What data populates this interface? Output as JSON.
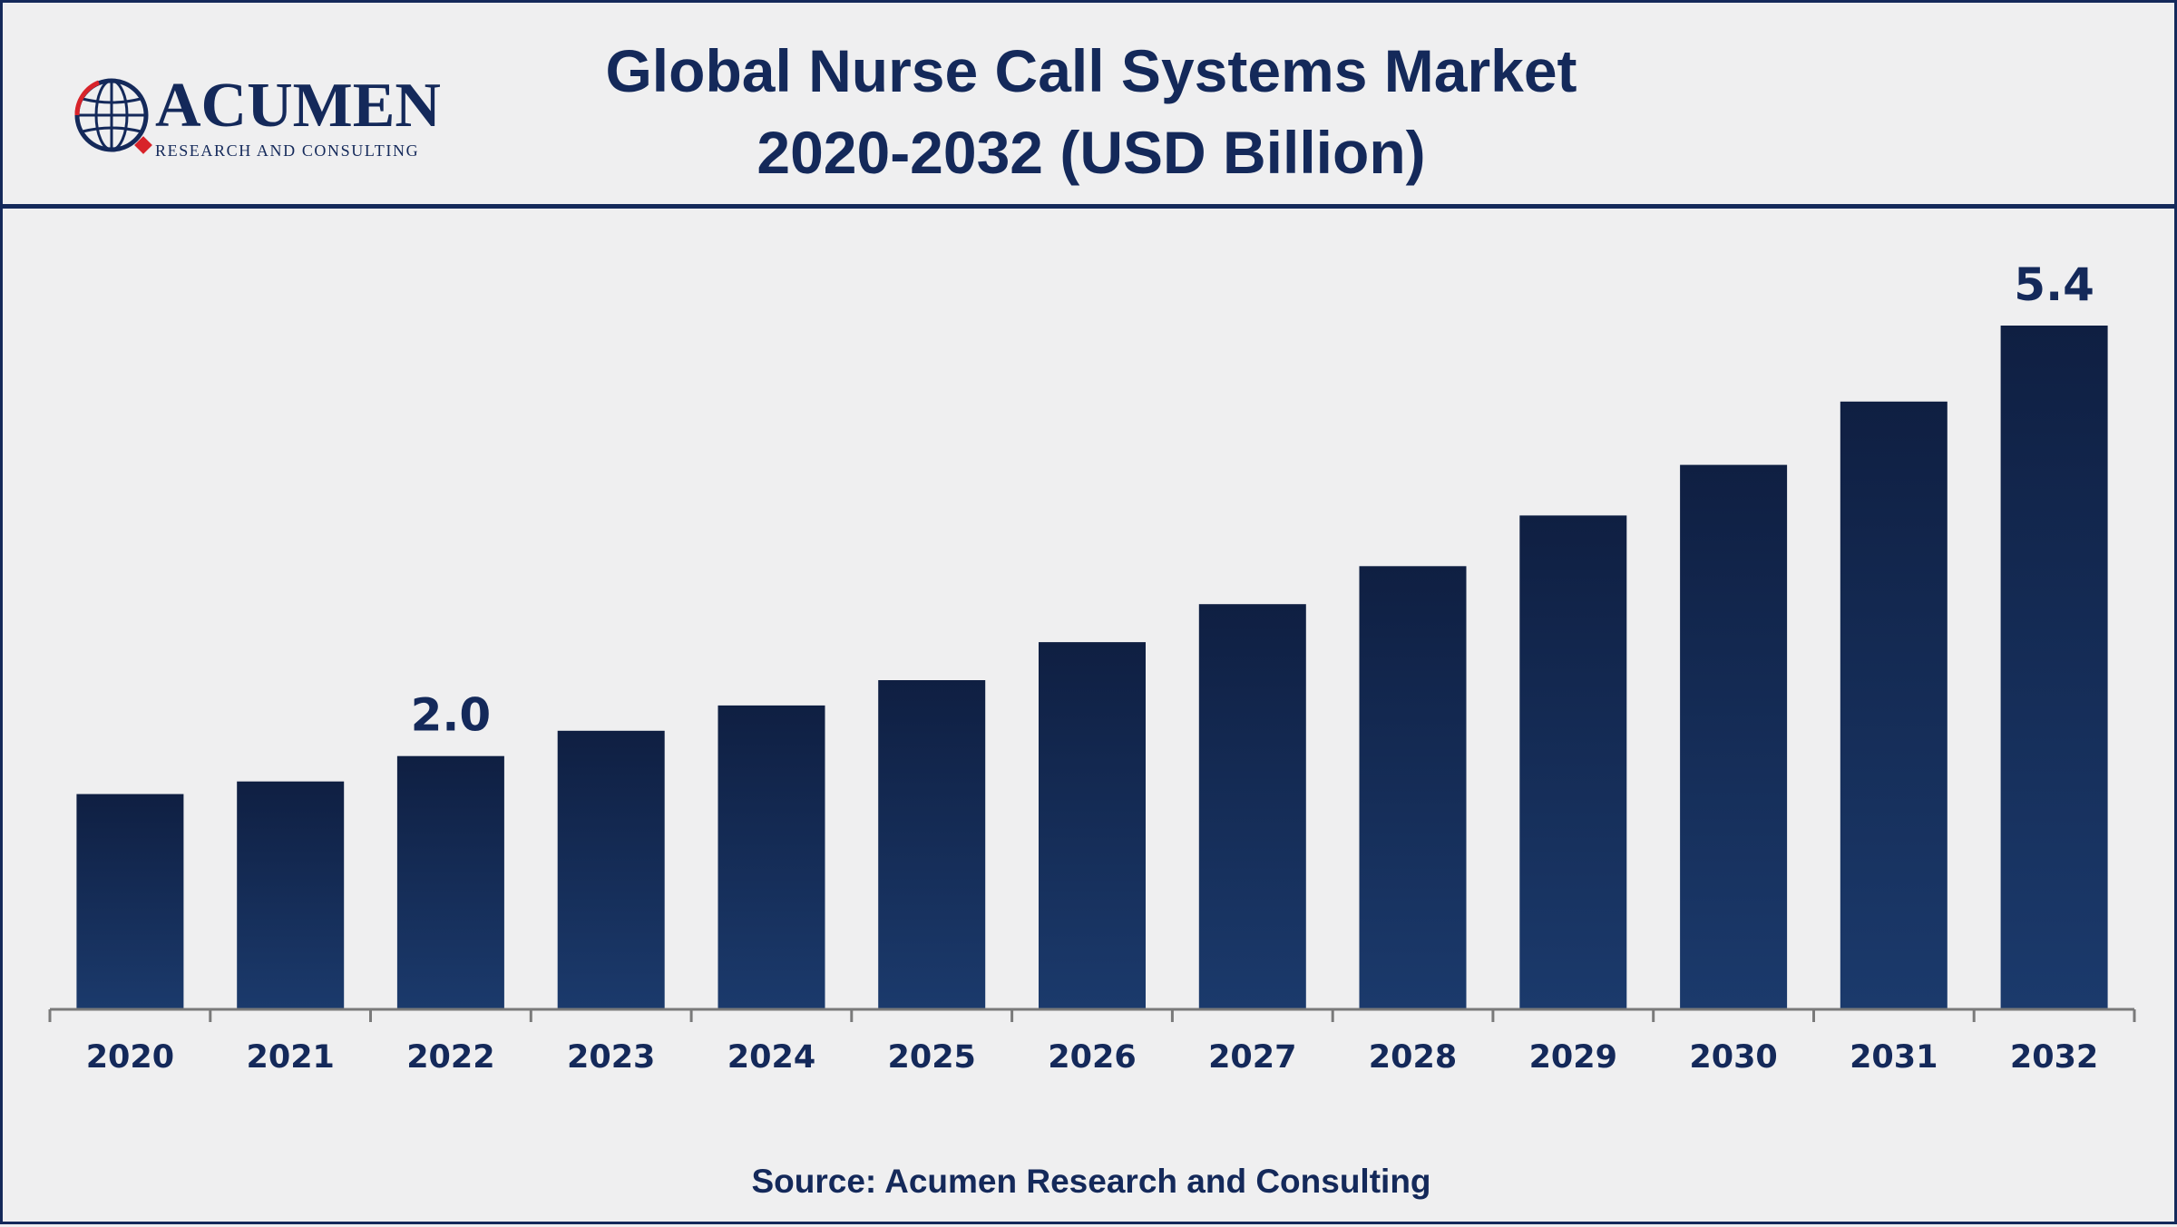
{
  "logo": {
    "name": "ACUMEN",
    "tagline": "RESEARCH AND CONSULTING"
  },
  "title_line1": "Global Nurse Call Systems Market",
  "title_line2": "2020-2032 (USD Billion)",
  "source": "Source: Acumen Research and Consulting",
  "colors": {
    "brand": "#14295a",
    "bar_top": "#0f1f42",
    "bar_bottom": "#1b3a6c",
    "axis": "#7a7a7a",
    "background": "#efeff0",
    "logo_accent": "#d8232a"
  },
  "chart_data": {
    "type": "bar",
    "categories": [
      "2020",
      "2021",
      "2022",
      "2023",
      "2024",
      "2025",
      "2026",
      "2027",
      "2028",
      "2029",
      "2030",
      "2031",
      "2032"
    ],
    "values": [
      1.7,
      1.8,
      2.0,
      2.2,
      2.4,
      2.6,
      2.9,
      3.2,
      3.5,
      3.9,
      4.3,
      4.8,
      5.4
    ],
    "data_labels": [
      {
        "category": "2022",
        "text": "2.0"
      },
      {
        "category": "2032",
        "text": "5.4"
      }
    ],
    "title": "Global Nurse Call Systems Market 2020-2032 (USD Billion)",
    "xlabel": "",
    "ylabel": "",
    "ylim": [
      0,
      5.4
    ],
    "grid": false,
    "legend": "none"
  }
}
